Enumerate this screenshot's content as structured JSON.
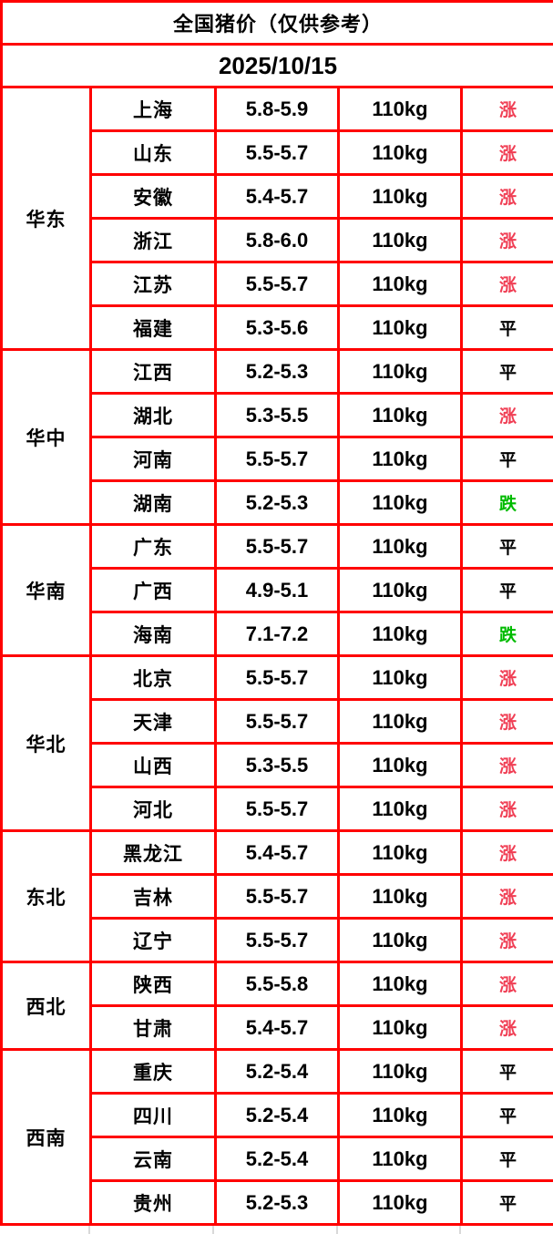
{
  "header": {
    "title": "全国猪价（仅供参考）",
    "date": "2025/10/15"
  },
  "colors": {
    "header_bg": "#E96A14",
    "border": "#FF0000",
    "up": "#F03E54",
    "down": "#00BB00",
    "flat": "#000000"
  },
  "table": {
    "regions": [
      {
        "name": "华东",
        "rows": [
          {
            "province": "上海",
            "price": "5.8-5.9",
            "weight": "110kg",
            "trend": "涨",
            "trend_type": "up"
          },
          {
            "province": "山东",
            "price": "5.5-5.7",
            "weight": "110kg",
            "trend": "涨",
            "trend_type": "up"
          },
          {
            "province": "安徽",
            "price": "5.4-5.7",
            "weight": "110kg",
            "trend": "涨",
            "trend_type": "up"
          },
          {
            "province": "浙江",
            "price": "5.8-6.0",
            "weight": "110kg",
            "trend": "涨",
            "trend_type": "up"
          },
          {
            "province": "江苏",
            "price": "5.5-5.7",
            "weight": "110kg",
            "trend": "涨",
            "trend_type": "up"
          },
          {
            "province": "福建",
            "price": "5.3-5.6",
            "weight": "110kg",
            "trend": "平",
            "trend_type": "flat"
          }
        ]
      },
      {
        "name": "华中",
        "rows": [
          {
            "province": "江西",
            "price": "5.2-5.3",
            "weight": "110kg",
            "trend": "平",
            "trend_type": "flat"
          },
          {
            "province": "湖北",
            "price": "5.3-5.5",
            "weight": "110kg",
            "trend": "涨",
            "trend_type": "up"
          },
          {
            "province": "河南",
            "price": "5.5-5.7",
            "weight": "110kg",
            "trend": "平",
            "trend_type": "flat"
          },
          {
            "province": "湖南",
            "price": "5.2-5.3",
            "weight": "110kg",
            "trend": "跌",
            "trend_type": "down"
          }
        ]
      },
      {
        "name": "华南",
        "rows": [
          {
            "province": "广东",
            "price": "5.5-5.7",
            "weight": "110kg",
            "trend": "平",
            "trend_type": "flat"
          },
          {
            "province": "广西",
            "price": "4.9-5.1",
            "weight": "110kg",
            "trend": "平",
            "trend_type": "flat"
          },
          {
            "province": "海南",
            "price": "7.1-7.2",
            "weight": "110kg",
            "trend": "跌",
            "trend_type": "down"
          }
        ]
      },
      {
        "name": "华北",
        "rows": [
          {
            "province": "北京",
            "price": "5.5-5.7",
            "weight": "110kg",
            "trend": "涨",
            "trend_type": "up"
          },
          {
            "province": "天津",
            "price": "5.5-5.7",
            "weight": "110kg",
            "trend": "涨",
            "trend_type": "up"
          },
          {
            "province": "山西",
            "price": "5.3-5.5",
            "weight": "110kg",
            "trend": "涨",
            "trend_type": "up"
          },
          {
            "province": "河北",
            "price": "5.5-5.7",
            "weight": "110kg",
            "trend": "涨",
            "trend_type": "up"
          }
        ]
      },
      {
        "name": "东北",
        "rows": [
          {
            "province": "黑龙江",
            "price": "5.4-5.7",
            "weight": "110kg",
            "trend": "涨",
            "trend_type": "up"
          },
          {
            "province": "吉林",
            "price": "5.5-5.7",
            "weight": "110kg",
            "trend": "涨",
            "trend_type": "up"
          },
          {
            "province": "辽宁",
            "price": "5.5-5.7",
            "weight": "110kg",
            "trend": "涨",
            "trend_type": "up"
          }
        ]
      },
      {
        "name": "西北",
        "rows": [
          {
            "province": "陕西",
            "price": "5.5-5.8",
            "weight": "110kg",
            "trend": "涨",
            "trend_type": "up"
          },
          {
            "province": "甘肃",
            "price": "5.4-5.7",
            "weight": "110kg",
            "trend": "涨",
            "trend_type": "up"
          }
        ]
      },
      {
        "name": "西南",
        "rows": [
          {
            "province": "重庆",
            "price": "5.2-5.4",
            "weight": "110kg",
            "trend": "平",
            "trend_type": "flat"
          },
          {
            "province": "四川",
            "price": "5.2-5.4",
            "weight": "110kg",
            "trend": "平",
            "trend_type": "flat"
          },
          {
            "province": "云南",
            "price": "5.2-5.4",
            "weight": "110kg",
            "trend": "平",
            "trend_type": "flat"
          },
          {
            "province": "贵州",
            "price": "5.2-5.3",
            "weight": "110kg",
            "trend": "平",
            "trend_type": "flat"
          }
        ]
      }
    ]
  }
}
